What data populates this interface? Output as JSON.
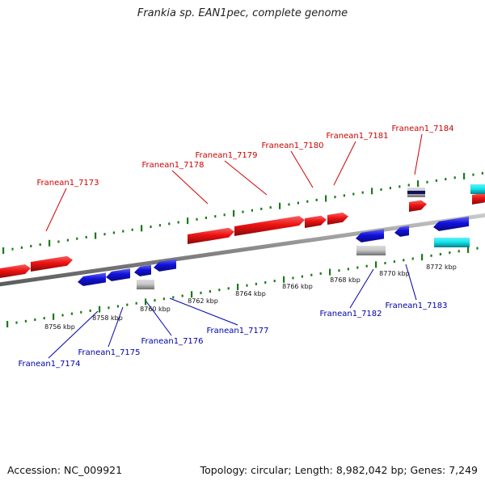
{
  "title": "Frankia sp. EAN1pec, complete genome",
  "footer": {
    "accession": "Accession: NC_009921",
    "topology": "Topology: circular; Length: 8,982,042 bp; Genes: 7,249"
  },
  "colors": {
    "forward_label": "#cc0000",
    "reverse_label": "#0000aa",
    "forward_gene": "#ee1111",
    "reverse_gene": "#1111dd",
    "cyan_gene": "#11e6ee",
    "gray_gene": "#c8c8c8",
    "backbone": "#888888",
    "tick": "#1a7a1a"
  },
  "scale_labels": [
    "8756 kbp",
    "8758 kbp",
    "8760 kbp",
    "8762 kbp",
    "8764 kbp",
    "8766 kbp",
    "8768 kbp",
    "8770 kbp",
    "8772 kbp"
  ],
  "forward_labels": [
    "Franean1_7173",
    "Franean1_7178",
    "Franean1_7179",
    "Franean1_7180",
    "Franean1_7181",
    "Franean1_7184"
  ],
  "reverse_labels": [
    "Franean1_7174",
    "Franean1_7175",
    "Franean1_7176",
    "Franean1_7177",
    "Franean1_7182",
    "Franean1_7183"
  ]
}
